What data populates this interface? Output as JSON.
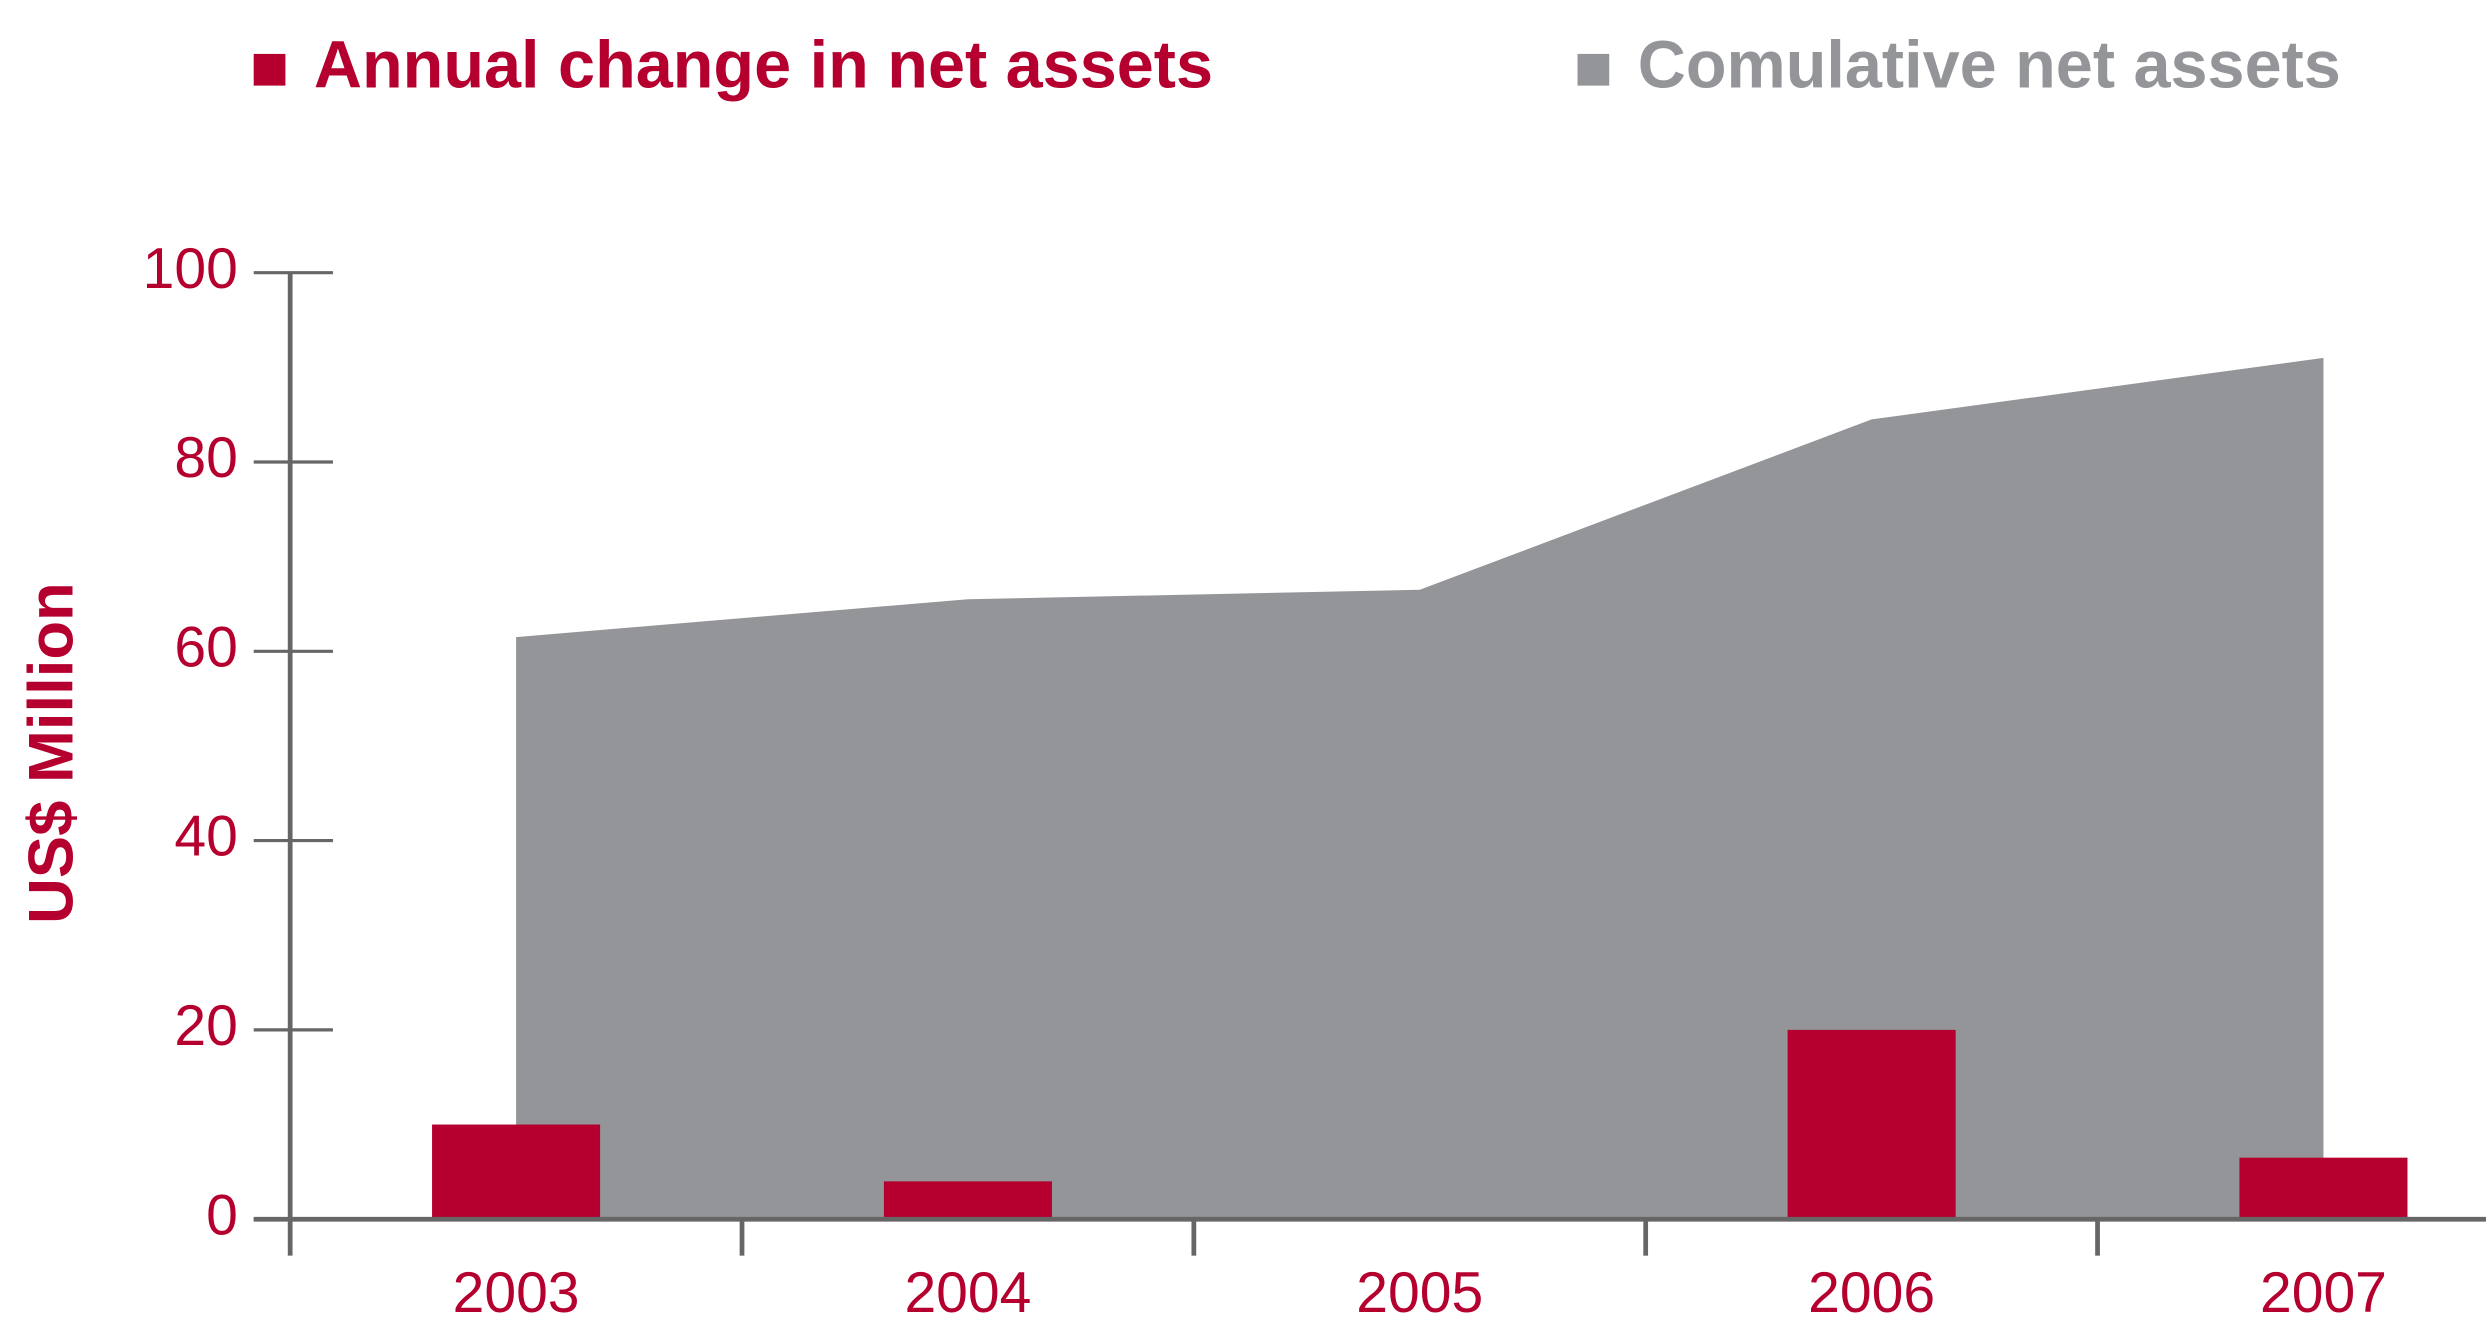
{
  "chart_data": {
    "type": "bar",
    "ylabel": "US$ Million",
    "categories": [
      "2003",
      "2004",
      "2005",
      "2006",
      "2007"
    ],
    "series": [
      {
        "name": "Annual change in net assets",
        "color": "#b5002f",
        "type": "bar",
        "values": [
          10,
          4,
          0,
          20,
          6.5
        ]
      },
      {
        "name": "Comulative net assets",
        "color": "#939598",
        "type": "area",
        "values": [
          61.5,
          65.5,
          66.5,
          84.5,
          91
        ]
      }
    ],
    "ylim": [
      0,
      100
    ],
    "yticks": [
      0,
      20,
      40,
      60,
      80,
      100
    ],
    "grid": false,
    "legend": "top"
  }
}
